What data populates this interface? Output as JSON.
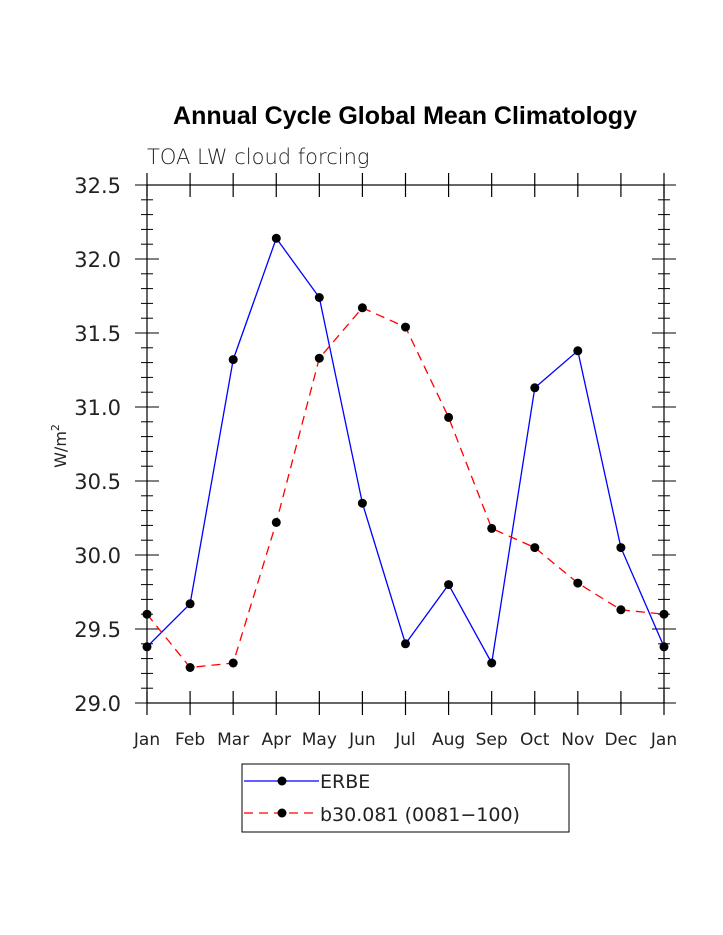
{
  "chart_data": {
    "type": "line",
    "title": "Annual Cycle Global Mean Climatology",
    "subtitle": "TOA LW cloud forcing",
    "ylabel": "W/m",
    "ylabel_superscript": "2",
    "xlabel": "",
    "categories": [
      "Jan",
      "Feb",
      "Mar",
      "Apr",
      "May",
      "Jun",
      "Jul",
      "Aug",
      "Sep",
      "Oct",
      "Nov",
      "Dec",
      "Jan"
    ],
    "ylim": [
      29.0,
      32.5
    ],
    "yticks": [
      "29.0",
      "29.5",
      "30.0",
      "30.5",
      "31.0",
      "31.5",
      "32.0",
      "32.5"
    ],
    "grid": false,
    "legend_position": "bottom",
    "series": [
      {
        "name": "ERBE",
        "color": "#0000ff",
        "dash": "solid",
        "values": [
          29.38,
          29.67,
          31.32,
          32.14,
          31.74,
          30.35,
          29.4,
          29.8,
          29.27,
          31.13,
          31.38,
          30.05,
          29.38
        ]
      },
      {
        "name": "b30.081 (0081−100)",
        "color": "#ff0000",
        "dash": "dashed",
        "values": [
          29.6,
          29.24,
          29.27,
          30.22,
          31.33,
          31.67,
          31.54,
          30.93,
          30.18,
          30.05,
          29.81,
          29.63,
          29.6
        ]
      }
    ]
  }
}
